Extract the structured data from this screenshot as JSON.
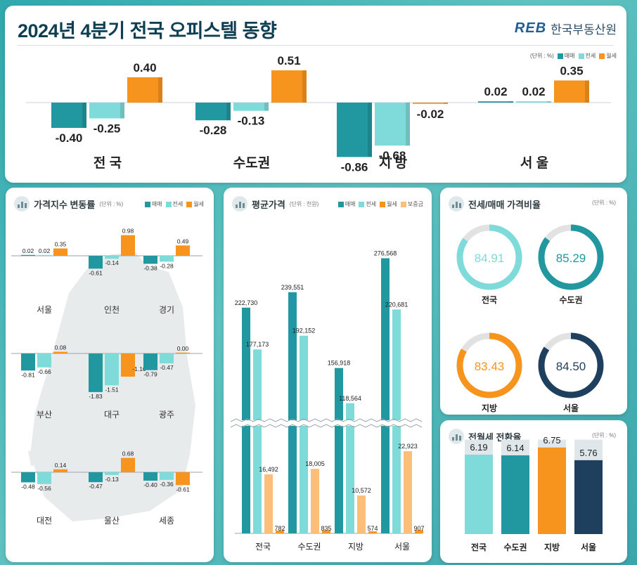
{
  "header": {
    "title": "2024년 4분기 전국 오피스텔 동향",
    "brand_logo": "REB",
    "brand_name": "한국부동산원",
    "unit": "(단위 : %)"
  },
  "series_names": [
    "매매",
    "전세",
    "월세"
  ],
  "colors": {
    "sale": "#21979f",
    "jeonse": "#7fdada",
    "wolse": "#f7941d",
    "deposit": "#fbbf7a",
    "navy": "#1e3f5e",
    "ring_track": "#e2e2e2"
  },
  "chart_data": [
    {
      "id": "top",
      "type": "bar",
      "title": "2024년 4분기 전국 오피스텔 동향",
      "categories": [
        "전 국",
        "수도권",
        "지 방",
        "서 울"
      ],
      "series": [
        {
          "name": "매매",
          "values": [
            -0.4,
            -0.28,
            -0.86,
            0.02
          ]
        },
        {
          "name": "전세",
          "values": [
            -0.25,
            -0.13,
            -0.68,
            0.02
          ]
        },
        {
          "name": "월세",
          "values": [
            0.4,
            0.51,
            -0.02,
            0.35
          ]
        }
      ],
      "labels": [
        [
          "-0.40",
          "-0.25",
          "0.40"
        ],
        [
          "-0.28",
          "-0.13",
          "0.51"
        ],
        [
          "-0.86",
          "-0.68",
          "-0.02"
        ],
        [
          "0.02",
          "0.02",
          "0.35"
        ]
      ],
      "unit": "(단위 : %)"
    },
    {
      "id": "price_index",
      "type": "bar",
      "title": "가격지수 변동률",
      "unit": "(단위 : %)",
      "categories": [
        "서울",
        "인천",
        "경기",
        "부산",
        "대구",
        "광주",
        "대전",
        "울산",
        "세종"
      ],
      "series": [
        {
          "name": "매매",
          "values": [
            0.02,
            -0.61,
            -0.38,
            -0.81,
            -1.83,
            -0.79,
            -0.48,
            -0.47,
            -0.4
          ]
        },
        {
          "name": "전세",
          "values": [
            0.02,
            -0.14,
            -0.28,
            -0.66,
            -1.51,
            -0.47,
            -0.56,
            -0.13,
            -0.36
          ]
        },
        {
          "name": "월세",
          "values": [
            0.35,
            0.98,
            0.49,
            0.08,
            -1.1,
            0.0,
            0.14,
            0.68,
            -0.61
          ]
        }
      ],
      "labels": [
        [
          "0.02",
          "0.02",
          "0.35"
        ],
        [
          "-0.61",
          "-0.14",
          "0.98"
        ],
        [
          "-0.38",
          "-0.28",
          "0.49"
        ],
        [
          "-0.81",
          "-0.66",
          "0.08"
        ],
        [
          "-1.83",
          "-1.51",
          "-1.10"
        ],
        [
          "-0.79",
          "-0.47",
          "0.00"
        ],
        [
          "-0.48",
          "-0.56",
          "0.14"
        ],
        [
          "-0.47",
          "-0.13",
          "0.68"
        ],
        [
          "-0.40",
          "-0.36",
          "-0.61"
        ]
      ]
    },
    {
      "id": "avg_price",
      "type": "bar",
      "title": "평균가격",
      "unit": "(단위 : 천원)",
      "categories": [
        "전국",
        "수도권",
        "지방",
        "서울"
      ],
      "series": [
        {
          "name": "매매",
          "values": [
            222730,
            239551,
            156918,
            276568
          ],
          "labels": [
            "222,730",
            "239,551",
            "156,918",
            "276,568"
          ]
        },
        {
          "name": "전세",
          "values": [
            177173,
            192152,
            118564,
            220681
          ],
          "labels": [
            "177,173",
            "192,152",
            "118,564",
            "220,681"
          ]
        },
        {
          "name": "월세",
          "values": [
            782,
            835,
            574,
            907
          ],
          "labels": [
            "782",
            "835",
            "574",
            "907"
          ]
        },
        {
          "name": "보증금",
          "values": [
            16492,
            18005,
            10572,
            22923
          ],
          "labels": [
            "16,492",
            "18,005",
            "10,572",
            "22,923"
          ]
        }
      ],
      "axis_break": true
    },
    {
      "id": "ratio",
      "type": "pie",
      "title": "전세/매매 가격비율",
      "unit": "(단위 : %)",
      "categories": [
        "전국",
        "수도권",
        "지방",
        "서울"
      ],
      "values": [
        84.91,
        85.29,
        83.43,
        84.5
      ],
      "labels": [
        "84.91",
        "85.29",
        "83.43",
        "84.50"
      ]
    },
    {
      "id": "conversion",
      "type": "bar",
      "title": "전월세 전환율",
      "unit": "(단위 : %)",
      "categories": [
        "전국",
        "수도권",
        "지방",
        "서울"
      ],
      "values": [
        6.19,
        6.14,
        6.75,
        5.76
      ],
      "labels": [
        "6.19",
        "6.14",
        "6.75",
        "5.76"
      ]
    }
  ]
}
